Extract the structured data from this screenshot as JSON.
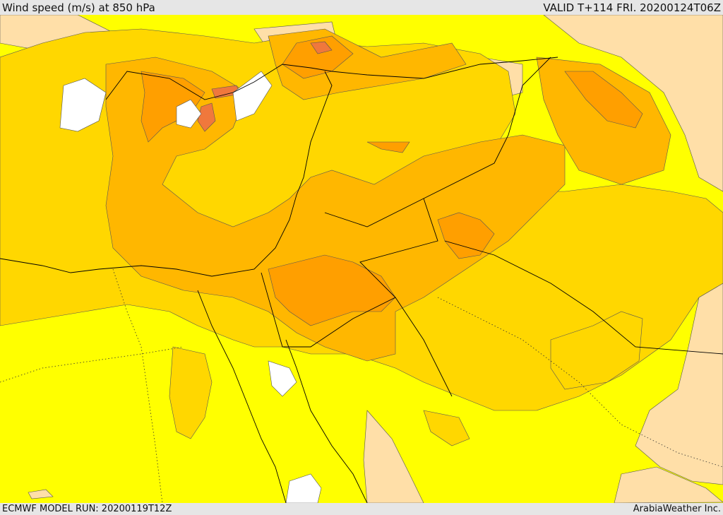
{
  "header": {
    "title": "Wind speed (m/s) at 850 hPa",
    "valid": "VALID T+114 FRI. 20200124T06Z"
  },
  "footer": {
    "model_run": "ECMWF MODEL RUN: 20200119T12Z",
    "credit": "ArabiaWeather Inc."
  },
  "palette": {
    "calm": "#ffffff",
    "light": "#ffdfa8",
    "moderate": "#ffff00",
    "fresh": "#ffd700",
    "strong": "#ffb700",
    "very_strong": "#ff9f00",
    "gale": "#f0783c",
    "contour": "#555555",
    "border": "#000000"
  }
}
